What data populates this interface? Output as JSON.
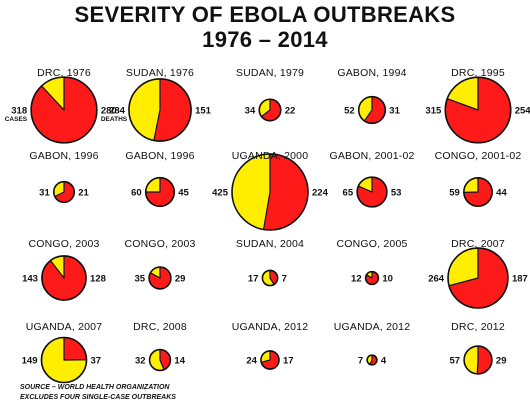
{
  "title_line1": "SEVERITY OF EBOLA OUTBREAKS",
  "title_line2": "1976 – 2014",
  "source_line1": "SOURCE – WORLD HEALTH ORGANIZATION",
  "source_line2": "EXCLUDES FOUR SINGLE-CASE OUTBREAKS",
  "chart_data": {
    "type": "pie",
    "encoding": "circle area ∝ cases; red wedge = deaths",
    "colors": {
      "cases_remaining": "#ffee00",
      "deaths": "#ff1a1a",
      "outline": "#111111"
    },
    "annotations": {
      "cases": "CASES",
      "deaths": "DEATHS"
    },
    "outbreaks": [
      {
        "label": "DRC, 1976",
        "cases": 318,
        "deaths": 280
      },
      {
        "label": "SUDAN, 1976",
        "cases": 284,
        "deaths": 151
      },
      {
        "label": "SUDAN, 1979",
        "cases": 34,
        "deaths": 22
      },
      {
        "label": "GABON, 1994",
        "cases": 52,
        "deaths": 31
      },
      {
        "label": "DRC, 1995",
        "cases": 315,
        "deaths": 254
      },
      {
        "label": "GABON, 1996",
        "cases": 31,
        "deaths": 21
      },
      {
        "label": "GABON, 1996",
        "cases": 60,
        "deaths": 45
      },
      {
        "label": "UGANDA, 2000",
        "cases": 425,
        "deaths": 224
      },
      {
        "label": "GABON, 2001-02",
        "cases": 65,
        "deaths": 53
      },
      {
        "label": "CONGO, 2001-02",
        "cases": 59,
        "deaths": 44
      },
      {
        "label": "CONGO, 2003",
        "cases": 143,
        "deaths": 128
      },
      {
        "label": "CONGO, 2003",
        "cases": 35,
        "deaths": 29
      },
      {
        "label": "SUDAN, 2004",
        "cases": 17,
        "deaths": 7
      },
      {
        "label": "CONGO, 2005",
        "cases": 12,
        "deaths": 10
      },
      {
        "label": "DRC, 2007",
        "cases": 264,
        "deaths": 187
      },
      {
        "label": "UGANDA, 2007",
        "cases": 149,
        "deaths": 37
      },
      {
        "label": "DRC, 2008",
        "cases": 32,
        "deaths": 14
      },
      {
        "label": "UGANDA, 2012",
        "cases": 24,
        "deaths": 17
      },
      {
        "label": "UGANDA, 2012",
        "cases": 7,
        "deaths": 4
      },
      {
        "label": "DRC, 2012",
        "cases": 57,
        "deaths": 29
      }
    ]
  }
}
